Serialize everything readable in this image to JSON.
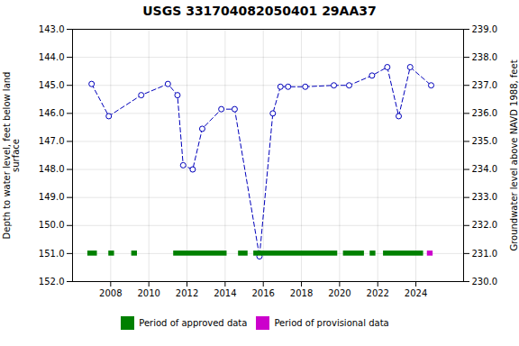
{
  "chart_data": {
    "type": "line",
    "title": "USGS 331704082050401 29AA37",
    "x": [
      2007.0,
      2007.9,
      2009.6,
      2011.0,
      2011.5,
      2011.8,
      2012.3,
      2012.8,
      2013.8,
      2014.5,
      2015.8,
      2016.5,
      2016.9,
      2017.3,
      2018.2,
      2019.7,
      2020.5,
      2021.7,
      2022.5,
      2023.1,
      2023.7,
      2024.8
    ],
    "values": [
      144.95,
      146.1,
      145.35,
      144.95,
      145.35,
      147.85,
      148.0,
      146.55,
      145.85,
      145.85,
      151.1,
      146.0,
      145.05,
      145.05,
      145.05,
      145.0,
      145.0,
      144.65,
      144.35,
      146.1,
      144.35,
      145.0
    ],
    "color": "#0000bb",
    "marker": "circle",
    "line_style": "dashed",
    "xlim": [
      2006.0,
      2026.5
    ],
    "xticks": [
      2008,
      2010,
      2012,
      2014,
      2016,
      2018,
      2020,
      2022,
      2024
    ],
    "ylim": [
      152.0,
      143.0
    ],
    "yticks": [
      {
        "value": 143.0,
        "label": "143.0"
      },
      {
        "value": 144.0,
        "label": "144.0"
      },
      {
        "value": 145.0,
        "label": "145.0"
      },
      {
        "value": 146.0,
        "label": "146.0"
      },
      {
        "value": 147.0,
        "label": "147.0"
      },
      {
        "value": 148.0,
        "label": "148.0"
      },
      {
        "value": 149.0,
        "label": "149.0"
      },
      {
        "value": 150.0,
        "label": "150.0"
      },
      {
        "value": 151.0,
        "label": "151.0"
      },
      {
        "value": 152.0,
        "label": "152.0"
      }
    ],
    "y2lim": [
      230.0,
      239.0
    ],
    "y2ticks": [
      {
        "value": 230.0,
        "label": "230.0"
      },
      {
        "value": 231.0,
        "label": "231.0"
      },
      {
        "value": 232.0,
        "label": "232.0"
      },
      {
        "value": 233.0,
        "label": "233.0"
      },
      {
        "value": 234.0,
        "label": "234.0"
      },
      {
        "value": 235.0,
        "label": "235.0"
      },
      {
        "value": 236.0,
        "label": "236.0"
      },
      {
        "value": 237.0,
        "label": "237.0"
      },
      {
        "value": 238.0,
        "label": "238.0"
      },
      {
        "value": 239.0,
        "label": "239.0"
      }
    ],
    "ylabel": "Depth to water level, feet below land\nsurface",
    "y2label": "Groundwater level above NAVD 1988, feet",
    "grid": true,
    "legend": "bottom",
    "periods": [
      {
        "name": "Period of approved data",
        "color": "#008000",
        "ranges": [
          [
            2006.8,
            2007.3
          ],
          [
            2007.9,
            2008.2
          ],
          [
            2009.1,
            2009.4
          ],
          [
            2011.3,
            2014.1
          ],
          [
            2014.7,
            2015.2
          ],
          [
            2015.5,
            2019.9
          ],
          [
            2020.2,
            2021.3
          ],
          [
            2021.6,
            2021.9
          ],
          [
            2022.3,
            2024.4
          ]
        ]
      },
      {
        "name": "Period of provisional data",
        "color": "#cc00cc",
        "ranges": [
          [
            2024.6,
            2024.9
          ]
        ]
      }
    ],
    "period_y": 151.0,
    "period_height": 0.18
  }
}
